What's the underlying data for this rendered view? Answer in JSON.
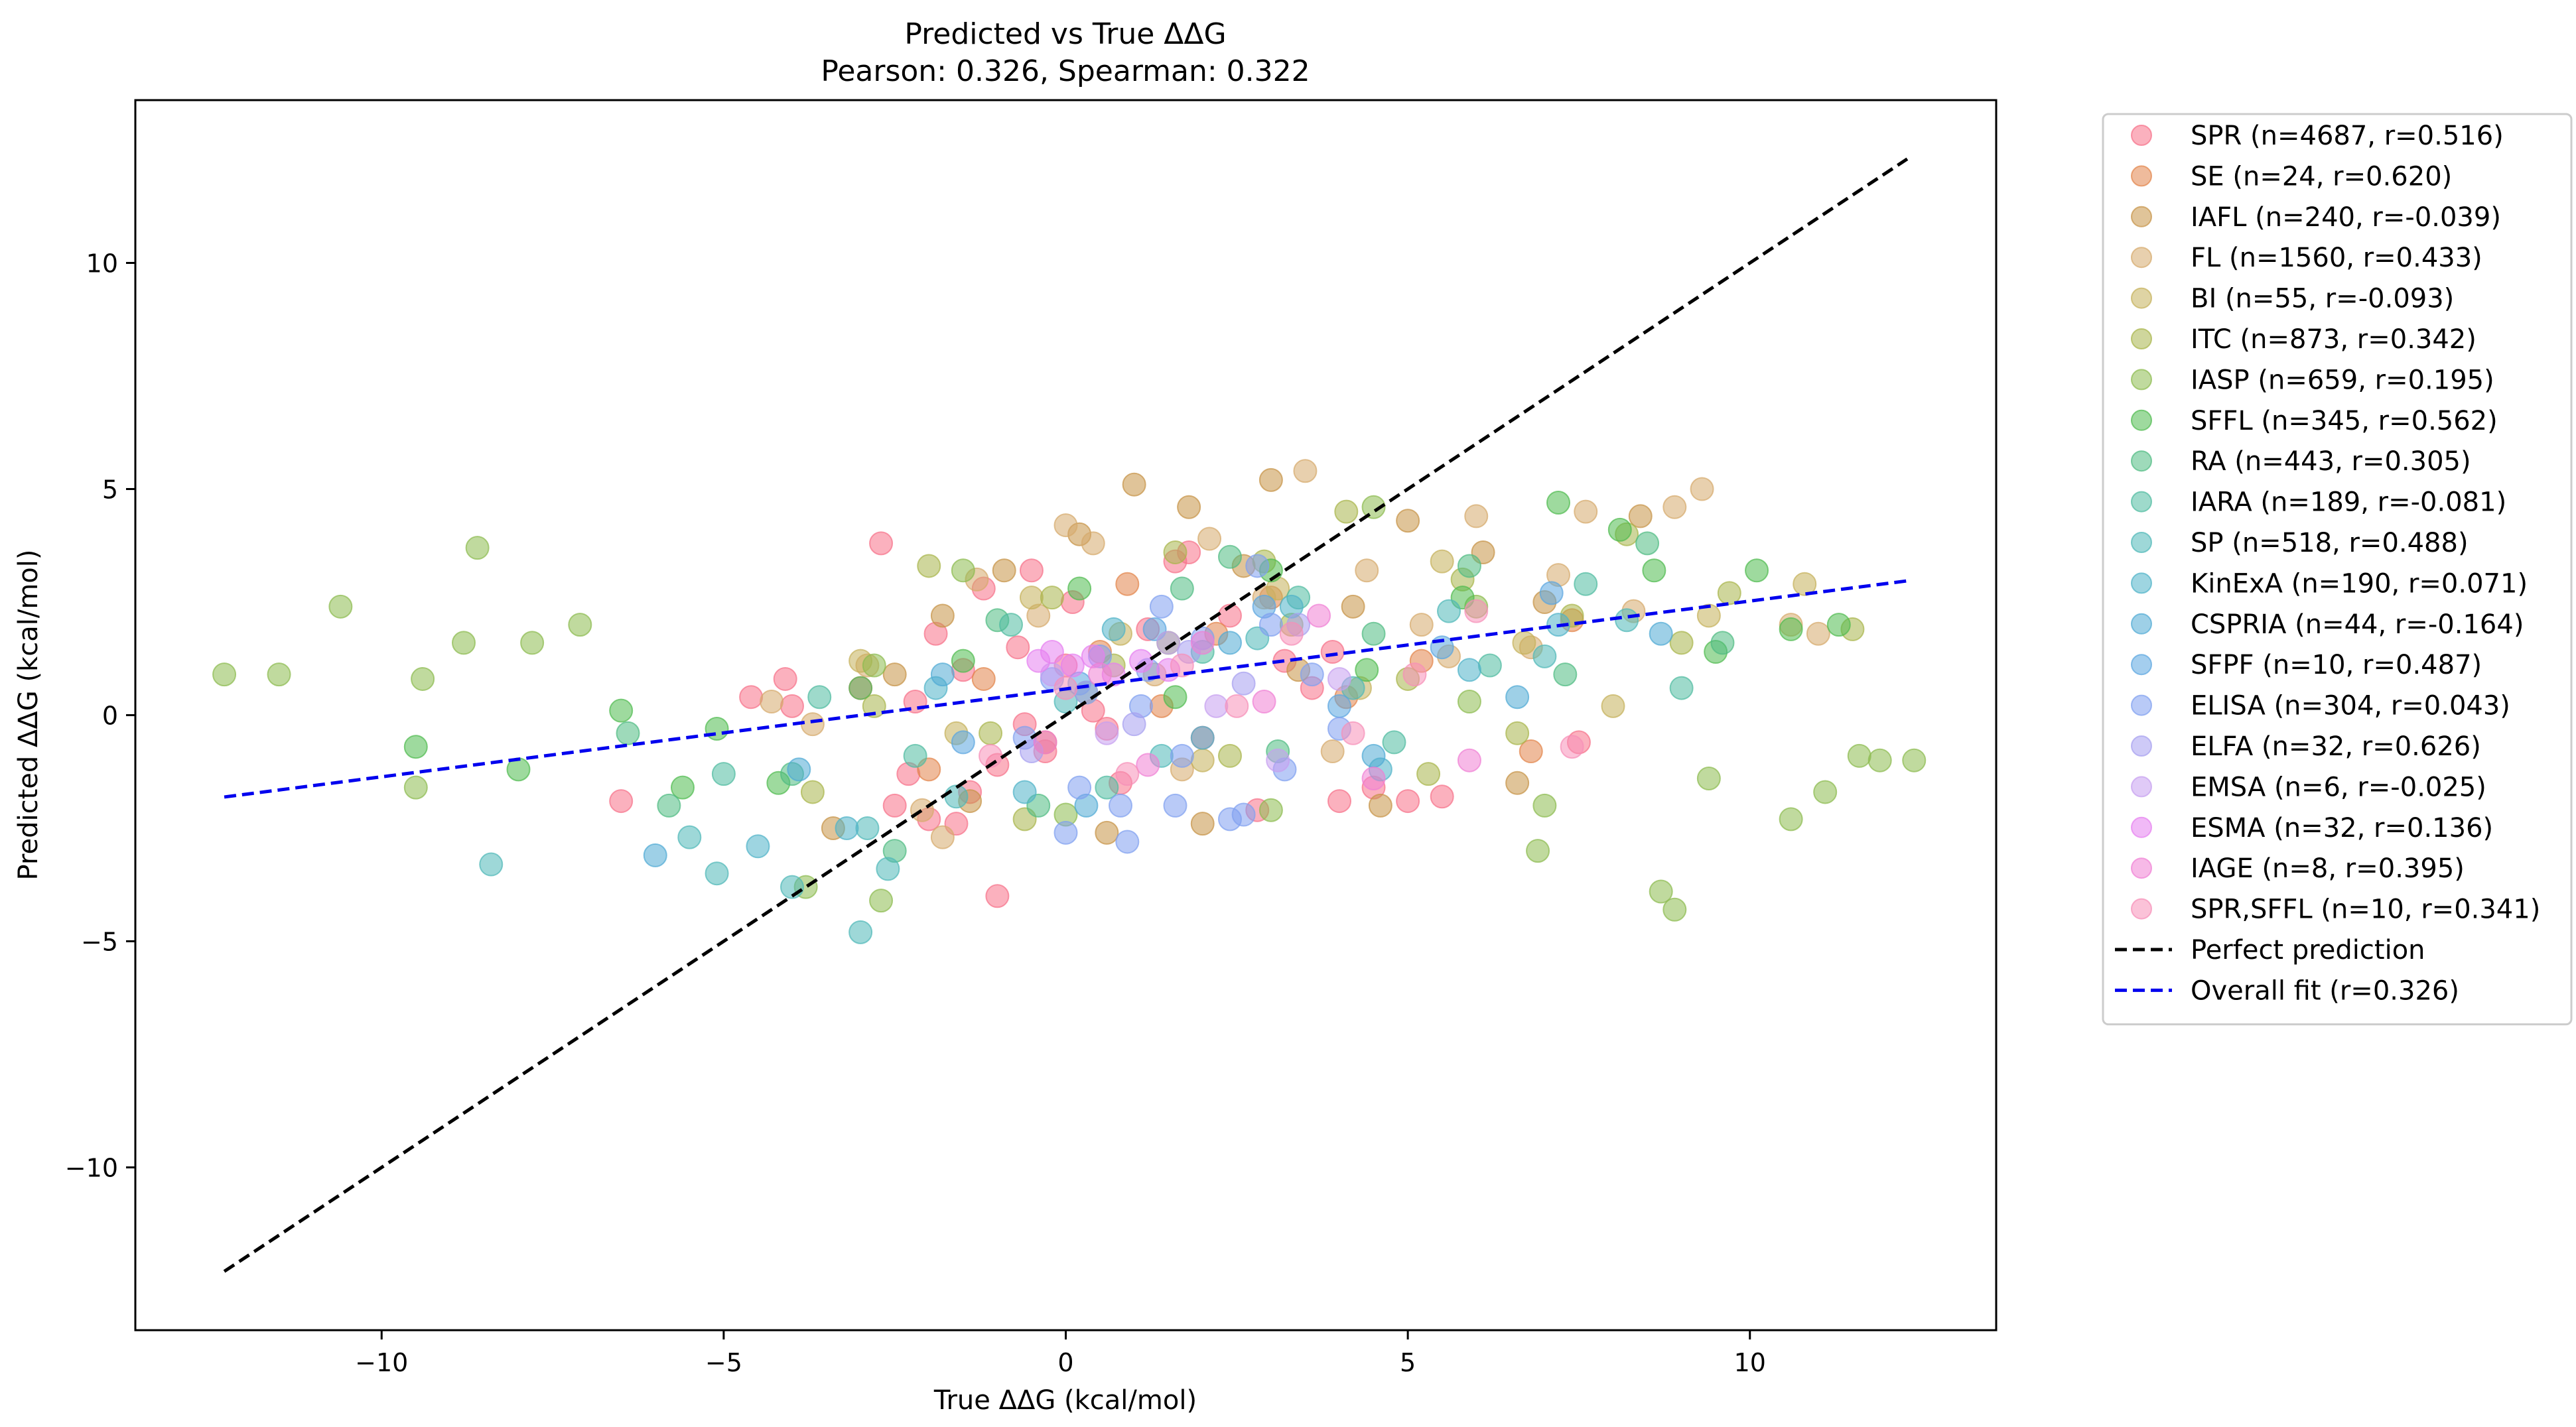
{
  "chart_data": {
    "type": "scatter",
    "title": "Predicted vs True ΔΔG",
    "subtitle": "Pearson: 0.326, Spearman: 0.322",
    "xlabel": "True ΔΔG (kcal/mol)",
    "ylabel": "Predicted ΔΔG (kcal/mol)",
    "xlim": [
      -13.6,
      13.6
    ],
    "ylim": [
      -13.6,
      13.6
    ],
    "xticks": [
      -10,
      -5,
      0,
      5,
      10
    ],
    "yticks": [
      -10,
      -5,
      0,
      5,
      10
    ],
    "xtick_labels": [
      "−10",
      "−5",
      "0",
      "5",
      "10"
    ],
    "ytick_labels": [
      "−10",
      "−5",
      "0",
      "5",
      "10"
    ],
    "grid": false,
    "legend_placement": "outside-right-top",
    "series": [
      {
        "name": "SPR (n=4687, r=0.516)",
        "color": "#f77189",
        "n": 4687,
        "r": 0.516,
        "x": [
          -6.5,
          -4.6,
          -4.1,
          -4.0,
          -3.0,
          -2.7,
          -2.5,
          -2.3,
          -2.0,
          -1.9,
          -1.6,
          -1.4,
          -1.2,
          -1.0,
          -0.7,
          -0.5,
          -0.3,
          0.1,
          0.4,
          0.8,
          1.2,
          1.6,
          2.0,
          2.4,
          2.8,
          3.2,
          3.6,
          4.0,
          4.5,
          5.0,
          5.5,
          7.5,
          -1.0,
          -2.2,
          -0.6,
          0.0,
          1.8,
          3.9,
          -1.5,
          0.6
        ],
        "y": [
          -1.9,
          0.4,
          0.8,
          0.2,
          0.6,
          3.8,
          -2.0,
          -1.3,
          -2.3,
          1.8,
          -2.4,
          -1.7,
          2.8,
          -1.1,
          1.5,
          3.2,
          -0.8,
          2.5,
          0.1,
          -1.5,
          1.9,
          3.4,
          -0.5,
          2.2,
          -2.1,
          1.2,
          0.6,
          -1.9,
          -1.6,
          -1.9,
          -1.8,
          -0.6,
          -4.0,
          0.3,
          -0.2,
          1.1,
          3.6,
          1.4,
          1.0,
          -0.3
        ]
      },
      {
        "name": "SE (n=24, r=0.620)",
        "color": "#e2844a",
        "n": 24,
        "r": 0.62,
        "x": [
          -2.0,
          -1.2,
          -0.3,
          0.5,
          1.4,
          2.2,
          3.0,
          4.1,
          5.2,
          6.8,
          7.4,
          0.9
        ],
        "y": [
          -1.2,
          0.8,
          -0.6,
          1.4,
          0.2,
          1.8,
          2.6,
          0.4,
          1.2,
          -0.8,
          2.1,
          2.9
        ]
      },
      {
        "name": "IAFL (n=240, r=-0.039)",
        "color": "#c69346",
        "n": 240,
        "r": -0.039,
        "x": [
          -3.4,
          -2.5,
          -1.8,
          -0.9,
          0.2,
          1.0,
          1.8,
          2.6,
          3.0,
          3.4,
          4.2,
          5.0,
          6.1,
          7.0,
          8.4,
          -1.4,
          0.6,
          2.0,
          4.6,
          6.6
        ],
        "y": [
          -2.5,
          0.9,
          2.2,
          3.2,
          4.0,
          5.1,
          4.6,
          3.3,
          5.2,
          1.0,
          2.4,
          4.3,
          3.6,
          2.5,
          4.4,
          -1.9,
          -2.6,
          -2.4,
          -2.0,
          -1.5
        ]
      },
      {
        "name": "FL (n=1560, r=0.433)",
        "color": "#d6a96b",
        "n": 1560,
        "r": 0.433,
        "x": [
          -4.3,
          -3.7,
          -2.9,
          -2.1,
          -1.3,
          -0.4,
          0.4,
          1.3,
          2.1,
          2.9,
          3.5,
          4.4,
          5.2,
          6.0,
          6.8,
          7.6,
          8.3,
          8.9,
          9.3,
          10.6,
          11.0,
          -1.8,
          0.0,
          1.7,
          3.9,
          5.6,
          7.2
        ],
        "y": [
          0.3,
          -0.2,
          1.1,
          -2.1,
          3.0,
          2.2,
          3.8,
          0.9,
          3.9,
          2.6,
          5.4,
          3.2,
          2.0,
          4.4,
          1.5,
          4.5,
          2.3,
          4.6,
          5.0,
          2.0,
          1.8,
          -2.7,
          4.2,
          -1.2,
          -0.8,
          1.3,
          3.1
        ]
      },
      {
        "name": "BI (n=55, r=-0.093)",
        "color": "#c5b05a",
        "n": 55,
        "r": -0.093,
        "x": [
          -3.0,
          -1.6,
          -0.5,
          0.8,
          2.0,
          3.1,
          4.3,
          5.5,
          6.7,
          8.0,
          9.4,
          10.8
        ],
        "y": [
          1.2,
          -0.4,
          2.6,
          1.8,
          -1.0,
          2.8,
          0.6,
          3.4,
          1.6,
          0.2,
          2.2,
          2.9
        ]
      },
      {
        "name": "ITC (n=873, r=0.342)",
        "color": "#a8b54a",
        "n": 873,
        "r": 0.342,
        "x": [
          -3.7,
          -2.8,
          -2.0,
          -1.1,
          -0.2,
          0.7,
          1.6,
          2.4,
          3.3,
          4.1,
          5.0,
          5.8,
          6.6,
          7.4,
          8.2,
          9.0,
          9.7,
          11.5,
          -0.6,
          2.9,
          5.3
        ],
        "y": [
          -1.7,
          0.2,
          3.3,
          -0.4,
          2.6,
          1.1,
          3.6,
          -0.9,
          2.0,
          4.5,
          0.8,
          3.0,
          -0.4,
          2.2,
          4.0,
          1.6,
          2.7,
          1.9,
          -2.3,
          3.4,
          -1.3
        ]
      },
      {
        "name": "IASP (n=659, r=0.195)",
        "color": "#8cbb4f",
        "n": 659,
        "r": 0.195,
        "x": [
          -12.3,
          -11.5,
          -10.6,
          -9.5,
          -9.4,
          -8.8,
          -8.6,
          -7.8,
          -7.1,
          -3.8,
          -2.7,
          -1.5,
          0.0,
          1.5,
          3.0,
          4.5,
          6.0,
          6.9,
          7.0,
          8.7,
          8.9,
          9.4,
          10.6,
          11.1,
          11.6,
          11.9,
          12.4,
          -2.8,
          5.9
        ],
        "y": [
          0.9,
          0.9,
          2.4,
          -1.6,
          0.8,
          1.6,
          3.7,
          1.6,
          2.0,
          -3.8,
          -4.1,
          3.2,
          -2.2,
          1.6,
          -2.1,
          4.6,
          2.4,
          -3.0,
          -2.0,
          -3.9,
          -4.3,
          -1.4,
          -2.3,
          -1.7,
          -0.9,
          -1.0,
          -1.0,
          1.1,
          0.3
        ]
      },
      {
        "name": "SFFL (n=345, r=0.562)",
        "color": "#4fbb4f",
        "n": 345,
        "r": 0.562,
        "x": [
          -9.5,
          -8.0,
          -6.5,
          -5.6,
          -5.1,
          -4.2,
          -3.0,
          -1.5,
          0.2,
          1.6,
          3.0,
          4.4,
          5.8,
          7.2,
          8.1,
          8.6,
          9.5,
          10.1,
          10.6,
          11.3
        ],
        "y": [
          -0.7,
          -1.2,
          0.1,
          -1.6,
          -0.3,
          -1.5,
          0.6,
          1.2,
          2.8,
          0.4,
          3.2,
          1.0,
          2.6,
          4.7,
          4.1,
          3.2,
          1.4,
          3.2,
          1.9,
          2.0
        ]
      },
      {
        "name": "RA (n=443, r=0.305)",
        "color": "#4fbb82",
        "n": 443,
        "r": 0.305,
        "x": [
          -6.4,
          -5.8,
          -4.0,
          -2.5,
          -1.0,
          0.3,
          1.7,
          3.1,
          4.5,
          5.9,
          7.3,
          8.5,
          9.6,
          -0.4,
          2.4
        ],
        "y": [
          -0.4,
          -2.0,
          -1.3,
          -3.0,
          2.1,
          0.5,
          2.8,
          -0.8,
          1.8,
          3.3,
          0.9,
          3.8,
          1.6,
          -2.0,
          3.5
        ]
      },
      {
        "name": "IARA (n=189, r=-0.081)",
        "color": "#4fbba0",
        "n": 189,
        "r": -0.081,
        "x": [
          -5.0,
          -3.6,
          -2.2,
          -0.8,
          0.6,
          2.0,
          3.4,
          4.8,
          6.2,
          7.6,
          9.0
        ],
        "y": [
          -1.3,
          0.4,
          -0.9,
          2.0,
          -1.6,
          1.4,
          2.6,
          -0.6,
          1.1,
          2.9,
          0.6
        ]
      },
      {
        "name": "SP (n=518, r=0.488)",
        "color": "#4fb8b8",
        "n": 518,
        "r": 0.488,
        "x": [
          -8.4,
          -5.5,
          -5.1,
          -4.0,
          -3.0,
          -2.9,
          -1.6,
          0.0,
          1.4,
          2.8,
          4.2,
          5.6,
          7.0,
          8.2,
          -2.6
        ],
        "y": [
          -3.3,
          -2.7,
          -3.5,
          -3.8,
          -4.8,
          -2.5,
          -1.8,
          0.3,
          -0.9,
          1.7,
          0.6,
          2.3,
          1.3,
          2.1,
          -3.4
        ]
      },
      {
        "name": "KinExA (n=190, r=0.071)",
        "color": "#4fb2c8",
        "n": 190,
        "r": 0.071,
        "x": [
          -4.5,
          -3.2,
          -1.9,
          -0.6,
          0.7,
          2.0,
          3.3,
          4.6,
          5.9,
          7.2
        ],
        "y": [
          -2.9,
          -2.5,
          0.6,
          -1.7,
          1.9,
          -0.5,
          2.4,
          -1.2,
          1.0,
          2.0
        ]
      },
      {
        "name": "CSPRIA (n=44, r=-0.164)",
        "color": "#4fa9d4",
        "n": 44,
        "r": -0.164,
        "x": [
          -6.0,
          -3.9,
          -1.8,
          0.3,
          2.4,
          4.5,
          6.6,
          8.7
        ],
        "y": [
          -3.1,
          -1.2,
          0.9,
          -2.0,
          1.6,
          -0.9,
          0.4,
          1.8
        ]
      },
      {
        "name": "SFPF (n=10, r=0.487)",
        "color": "#5aa5e0",
        "n": 10,
        "r": 0.487,
        "x": [
          -1.5,
          0.2,
          1.3,
          2.9,
          4.0,
          5.5,
          7.1
        ],
        "y": [
          -0.6,
          0.7,
          1.9,
          2.4,
          0.2,
          1.5,
          2.7
        ]
      },
      {
        "name": "ELISA (n=304, r=0.043)",
        "color": "#7f9ff0",
        "n": 304,
        "r": 0.043,
        "x": [
          -0.6,
          -0.2,
          0.2,
          0.5,
          0.8,
          1.1,
          1.4,
          1.7,
          2.0,
          2.4,
          2.8,
          3.2,
          3.6,
          4.0,
          0.9,
          1.6,
          2.6,
          3.0,
          0.0,
          1.2
        ],
        "y": [
          -0.5,
          0.8,
          -1.6,
          1.3,
          -2.0,
          0.2,
          2.4,
          -0.9,
          1.7,
          -2.3,
          3.3,
          -1.2,
          0.9,
          -0.3,
          -2.8,
          -2.0,
          -2.2,
          2.0,
          -2.6,
          1.0
        ]
      },
      {
        "name": "ELFA (n=32, r=0.626)",
        "color": "#a69ff0",
        "n": 32,
        "r": 0.626,
        "x": [
          -0.5,
          0.3,
          1.0,
          1.8,
          2.6,
          3.4
        ],
        "y": [
          -0.8,
          0.5,
          -0.2,
          1.4,
          0.7,
          2.0
        ]
      },
      {
        "name": "EMSA (n=6, r=-0.025)",
        "color": "#c69ff0",
        "n": 6,
        "r": -0.025,
        "x": [
          -0.2,
          0.6,
          1.5,
          2.2,
          3.1,
          4.0
        ],
        "y": [
          0.9,
          -0.4,
          1.6,
          0.2,
          -1.0,
          0.8
        ]
      },
      {
        "name": "ESMA (n=32, r=0.136)",
        "color": "#e57ff0",
        "n": 32,
        "r": 0.136,
        "x": [
          -0.4,
          -0.2,
          0.1,
          0.4,
          0.7,
          1.1,
          1.5
        ],
        "y": [
          1.2,
          1.4,
          1.1,
          1.3,
          0.9,
          1.2,
          1.0
        ]
      },
      {
        "name": "IAGE (n=8, r=0.395)",
        "color": "#f07fd4",
        "n": 8,
        "r": 0.395,
        "x": [
          -0.3,
          0.5,
          1.2,
          2.0,
          2.9,
          3.7,
          4.5,
          5.9
        ],
        "y": [
          -0.6,
          0.9,
          -1.1,
          1.6,
          0.3,
          2.2,
          -1.4,
          -1.0
        ]
      },
      {
        "name": "SPR,SFFL (n=10, r=0.341)",
        "color": "#f78fb8",
        "n": 10,
        "r": 0.341,
        "x": [
          -1.1,
          0.0,
          0.9,
          1.7,
          2.5,
          3.3,
          4.2,
          5.1,
          6.0,
          7.4
        ],
        "y": [
          -0.9,
          0.6,
          -1.3,
          1.1,
          0.2,
          1.8,
          -0.4,
          0.9,
          2.3,
          -0.7
        ]
      }
    ],
    "lines": [
      {
        "name": "Perfect prediction",
        "color": "#000000",
        "style": "dashed",
        "x": [
          -12.3,
          12.3
        ],
        "y": [
          -12.3,
          12.3
        ]
      },
      {
        "name": "Overall fit (r=0.326)",
        "color": "#0000ee",
        "style": "dashed",
        "x": [
          -12.3,
          12.3
        ],
        "y": [
          -1.81,
          2.97
        ]
      }
    ]
  }
}
